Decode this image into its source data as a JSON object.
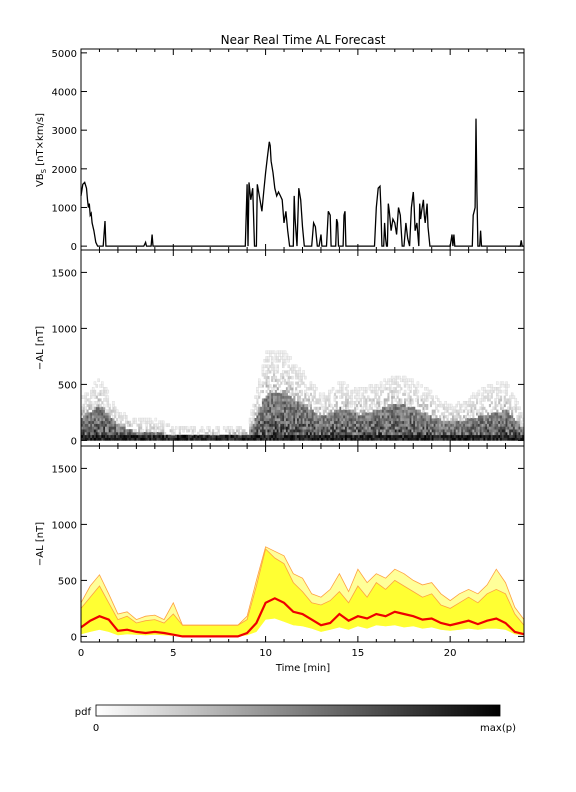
{
  "title": "Near Real Time AL Forecast",
  "colorbar": {
    "label": "pdf",
    "min_label": "0",
    "max_label": "max(p)"
  },
  "chart_data": [
    {
      "type": "line",
      "ylabel_main": "VB",
      "ylabel_sub": "S",
      "ylabel_unit": " [nT×km/s]",
      "ylim": [
        -100,
        5100
      ],
      "yticks": [
        "0",
        "1000",
        "2000",
        "3000",
        "4000",
        "5000"
      ],
      "xlim": [
        0,
        24
      ],
      "series": [
        {
          "values": [
            [
              0,
              1300
            ],
            [
              0.1,
              1600
            ],
            [
              0.2,
              1650
            ],
            [
              0.3,
              1500
            ],
            [
              0.35,
              1200
            ],
            [
              0.4,
              1000
            ],
            [
              0.45,
              1100
            ],
            [
              0.5,
              800
            ],
            [
              0.55,
              850
            ],
            [
              0.6,
              600
            ],
            [
              0.7,
              400
            ],
            [
              0.8,
              100
            ],
            [
              0.9,
              0
            ],
            [
              1.2,
              0
            ],
            [
              1.3,
              650
            ],
            [
              1.35,
              0
            ],
            [
              3.4,
              0
            ],
            [
              3.5,
              100
            ],
            [
              3.55,
              0
            ],
            [
              3.8,
              0
            ],
            [
              3.85,
              300
            ],
            [
              3.9,
              0
            ],
            [
              8.9,
              0
            ],
            [
              9.0,
              1600
            ],
            [
              9.05,
              0
            ],
            [
              9.1,
              1650
            ],
            [
              9.2,
              1200
            ],
            [
              9.3,
              1500
            ],
            [
              9.4,
              0
            ],
            [
              9.5,
              0
            ],
            [
              9.55,
              1600
            ],
            [
              9.7,
              1200
            ],
            [
              9.8,
              900
            ],
            [
              9.9,
              1400
            ],
            [
              10.0,
              1900
            ],
            [
              10.1,
              2300
            ],
            [
              10.2,
              2700
            ],
            [
              10.25,
              2600
            ],
            [
              10.3,
              2200
            ],
            [
              10.4,
              1900
            ],
            [
              10.5,
              1500
            ],
            [
              10.6,
              1300
            ],
            [
              10.7,
              1400
            ],
            [
              10.8,
              1300
            ],
            [
              10.9,
              1200
            ],
            [
              11.0,
              600
            ],
            [
              11.1,
              900
            ],
            [
              11.2,
              400
            ],
            [
              11.3,
              0
            ],
            [
              11.5,
              0
            ],
            [
              11.55,
              1300
            ],
            [
              11.6,
              700
            ],
            [
              11.7,
              0
            ],
            [
              11.8,
              1500
            ],
            [
              11.9,
              1200
            ],
            [
              12.0,
              500
            ],
            [
              12.1,
              0
            ],
            [
              12.5,
              0
            ],
            [
              12.6,
              600
            ],
            [
              12.7,
              500
            ],
            [
              12.8,
              0
            ],
            [
              12.9,
              0
            ],
            [
              13.0,
              300
            ],
            [
              13.05,
              0
            ],
            [
              13.3,
              0
            ],
            [
              13.4,
              900
            ],
            [
              13.5,
              800
            ],
            [
              13.55,
              0
            ],
            [
              13.8,
              0
            ],
            [
              13.85,
              700
            ],
            [
              13.9,
              600
            ],
            [
              13.95,
              0
            ],
            [
              14.2,
              0
            ],
            [
              14.25,
              800
            ],
            [
              14.3,
              900
            ],
            [
              14.35,
              0
            ],
            [
              15.9,
              0
            ],
            [
              16.0,
              1000
            ],
            [
              16.1,
              1500
            ],
            [
              16.2,
              1550
            ],
            [
              16.25,
              1000
            ],
            [
              16.3,
              0
            ],
            [
              16.4,
              0
            ],
            [
              16.45,
              600
            ],
            [
              16.5,
              200
            ],
            [
              16.55,
              0
            ],
            [
              16.6,
              0
            ],
            [
              16.65,
              1100
            ],
            [
              16.7,
              900
            ],
            [
              16.8,
              400
            ],
            [
              16.9,
              700
            ],
            [
              17.0,
              600
            ],
            [
              17.1,
              300
            ],
            [
              17.2,
              1000
            ],
            [
              17.3,
              800
            ],
            [
              17.4,
              0
            ],
            [
              17.5,
              0
            ],
            [
              17.6,
              600
            ],
            [
              17.7,
              200
            ],
            [
              17.8,
              0
            ],
            [
              17.9,
              1000
            ],
            [
              18.0,
              1400
            ],
            [
              18.05,
              1000
            ],
            [
              18.1,
              400
            ],
            [
              18.2,
              600
            ],
            [
              18.3,
              0
            ],
            [
              18.35,
              1100
            ],
            [
              18.4,
              700
            ],
            [
              18.45,
              900
            ],
            [
              18.55,
              1200
            ],
            [
              18.6,
              800
            ],
            [
              18.65,
              600
            ],
            [
              18.75,
              1100
            ],
            [
              18.8,
              500
            ],
            [
              18.9,
              0
            ],
            [
              20.0,
              0
            ],
            [
              20.1,
              300
            ],
            [
              20.15,
              0
            ],
            [
              20.2,
              300
            ],
            [
              20.25,
              0
            ],
            [
              21.2,
              0
            ],
            [
              21.25,
              800
            ],
            [
              21.3,
              900
            ],
            [
              21.35,
              1000
            ],
            [
              21.4,
              3300
            ],
            [
              21.45,
              1400
            ],
            [
              21.5,
              0
            ],
            [
              21.6,
              0
            ],
            [
              21.65,
              400
            ],
            [
              21.7,
              0
            ],
            [
              23.8,
              0
            ],
            [
              23.85,
              150
            ],
            [
              23.9,
              0
            ],
            [
              24,
              0
            ]
          ]
        }
      ]
    },
    {
      "type": "heatmap",
      "ylabel": "−AL [nT]",
      "ylim": [
        -50,
        1700
      ],
      "yticks": [
        "0",
        "500",
        "1000",
        "1500"
      ],
      "xlim": [
        0,
        24
      ],
      "description_values": "probability density of -AL versus time; columns are time bins, darkness = pdf",
      "intensity_profile": {
        "time": [
          0,
          1,
          2,
          3,
          4,
          5,
          6,
          7,
          8,
          9,
          10,
          11,
          12,
          13,
          14,
          15,
          16,
          17,
          18,
          19,
          20,
          21,
          22,
          23,
          24
        ],
        "upper_extent_nT": [
          380,
          560,
          250,
          180,
          180,
          120,
          110,
          110,
          110,
          120,
          800,
          780,
          600,
          400,
          520,
          450,
          500,
          580,
          520,
          420,
          300,
          380,
          480,
          520,
          200
        ],
        "dense_upper_nT": [
          200,
          300,
          120,
          60,
          60,
          40,
          40,
          40,
          40,
          40,
          400,
          420,
          300,
          200,
          280,
          220,
          260,
          320,
          280,
          200,
          150,
          180,
          220,
          260,
          80
        ]
      }
    },
    {
      "type": "area",
      "ylabel": "−AL [nT]",
      "ylim": [
        -50,
        1700
      ],
      "yticks": [
        "0",
        "500",
        "1000",
        "1500"
      ],
      "xlim": [
        0,
        24
      ],
      "xlabel": "Time [min]",
      "xticks": [
        "0",
        "5",
        "10",
        "15",
        "20"
      ],
      "colors": {
        "band": "#ffff33",
        "envelope": "#ffa040",
        "median": "#ee0000"
      },
      "time": [
        0,
        0.5,
        1,
        1.5,
        2,
        2.5,
        3,
        3.5,
        4,
        4.5,
        5,
        5.5,
        6,
        6.5,
        7,
        7.5,
        8,
        8.5,
        9,
        9.5,
        10,
        10.5,
        11,
        11.5,
        12,
        12.5,
        13,
        13.5,
        14,
        14.5,
        15,
        15.5,
        16,
        16.5,
        17,
        17.5,
        18,
        18.5,
        19,
        19.5,
        20,
        20.5,
        21,
        21.5,
        22,
        22.5,
        23,
        23.5,
        24
      ],
      "band_lower": [
        20,
        40,
        60,
        40,
        10,
        20,
        15,
        10,
        15,
        10,
        5,
        0,
        0,
        0,
        0,
        0,
        0,
        0,
        10,
        40,
        150,
        160,
        130,
        100,
        90,
        70,
        40,
        60,
        80,
        60,
        90,
        70,
        100,
        90,
        100,
        80,
        90,
        70,
        80,
        60,
        50,
        60,
        70,
        60,
        70,
        70,
        60,
        20,
        10
      ],
      "band_upper": [
        250,
        350,
        450,
        300,
        150,
        180,
        120,
        140,
        150,
        120,
        200,
        100,
        100,
        100,
        100,
        100,
        100,
        100,
        150,
        450,
        780,
        700,
        650,
        480,
        400,
        300,
        280,
        320,
        400,
        300,
        450,
        350,
        480,
        420,
        500,
        450,
        400,
        350,
        380,
        280,
        250,
        300,
        350,
        300,
        380,
        420,
        380,
        200,
        100
      ],
      "envelope_upper": [
        300,
        450,
        550,
        380,
        200,
        220,
        150,
        180,
        190,
        150,
        300,
        100,
        100,
        100,
        100,
        100,
        100,
        100,
        180,
        500,
        800,
        760,
        720,
        560,
        520,
        380,
        350,
        420,
        560,
        400,
        600,
        480,
        560,
        520,
        600,
        560,
        500,
        460,
        480,
        380,
        320,
        380,
        420,
        380,
        460,
        600,
        480,
        260,
        150
      ],
      "median": [
        80,
        140,
        180,
        150,
        50,
        60,
        40,
        30,
        40,
        30,
        15,
        0,
        0,
        0,
        0,
        0,
        0,
        0,
        30,
        120,
        300,
        340,
        300,
        220,
        200,
        150,
        100,
        120,
        200,
        140,
        180,
        160,
        200,
        180,
        220,
        200,
        180,
        150,
        160,
        120,
        100,
        120,
        140,
        110,
        140,
        160,
        120,
        40,
        20
      ]
    }
  ]
}
